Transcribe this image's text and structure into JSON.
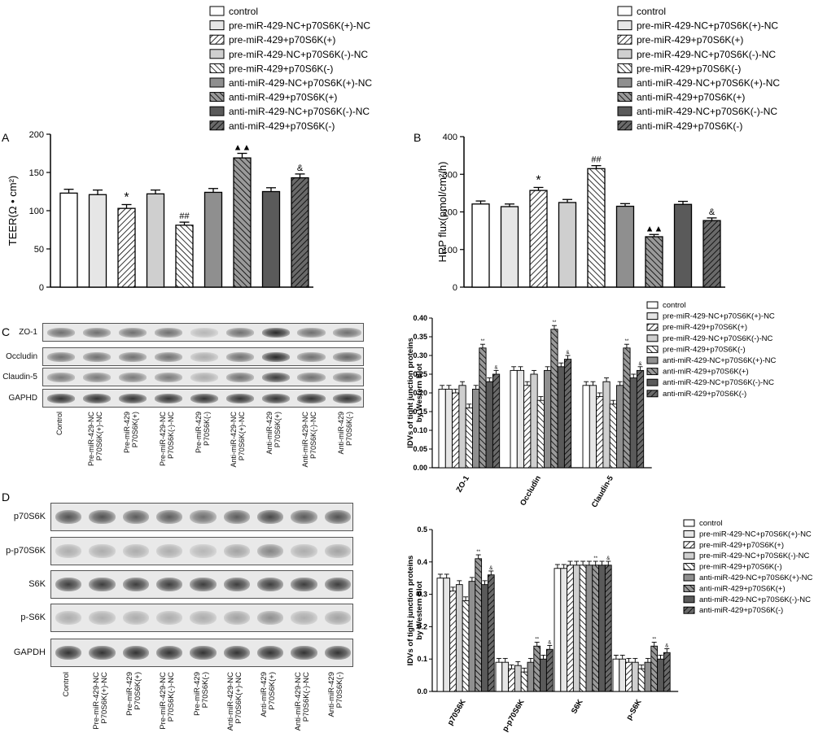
{
  "panels": {
    "A": "A",
    "B": "B",
    "C": "C",
    "D": "D"
  },
  "group_names_upper": [
    "control",
    "pre-miR-429-NC+p70S6K(+)-NC",
    "pre-miR-429+p70S6K(+)",
    "pre-miR-429-NC+p70S6K(-)-NC",
    "pre-miR-429+p70S6K(-)",
    "anti-miR-429-NC+p70S6K(+)-NC",
    "anti-miR-429+p70S6K(+)",
    "anti-miR-429-NC+p70S6K(-)-NC",
    "anti-miR-429+p70S6K(-)"
  ],
  "lane_labels": [
    "Control",
    "Pre-miR-429-NC\nP70S6K(+)-NC",
    "Pre-miR-429\nP70S6K(+)",
    "Pre-miR-429-NC\nP70S6K(-)-NC",
    "Pre-miR-429\nP70S6K(-)",
    "Anti-miR-429-NC\nP70S6K(+)-NC",
    "Anti-miR-429\nP70S6K(+)",
    "Anti-miR-429-NC\nP70S6K(-)-NC",
    "Anti-miR-429\nP70S6K(-)"
  ],
  "blots_C": {
    "labels": [
      "ZO-1",
      "Occludin",
      "Claudin-5",
      "GAPHD"
    ],
    "intensity": [
      [
        0.6,
        0.6,
        0.6,
        0.6,
        0.25,
        0.6,
        0.95,
        0.6,
        0.6
      ],
      [
        0.6,
        0.6,
        0.6,
        0.6,
        0.3,
        0.6,
        0.95,
        0.6,
        0.65
      ],
      [
        0.55,
        0.55,
        0.55,
        0.55,
        0.3,
        0.6,
        0.85,
        0.6,
        0.6
      ],
      [
        0.9,
        0.9,
        0.9,
        0.9,
        0.9,
        0.9,
        0.9,
        0.9,
        0.9
      ]
    ]
  },
  "blots_D": {
    "labels": [
      "p70S6K",
      "p-p70S6K",
      "S6K",
      "p-S6K",
      "GAPDH"
    ],
    "intensity": [
      [
        0.75,
        0.75,
        0.7,
        0.7,
        0.6,
        0.7,
        0.8,
        0.7,
        0.75
      ],
      [
        0.3,
        0.3,
        0.3,
        0.3,
        0.25,
        0.35,
        0.5,
        0.3,
        0.35
      ],
      [
        0.85,
        0.85,
        0.85,
        0.85,
        0.85,
        0.85,
        0.85,
        0.85,
        0.85
      ],
      [
        0.3,
        0.3,
        0.3,
        0.3,
        0.3,
        0.35,
        0.45,
        0.3,
        0.35
      ],
      [
        0.9,
        0.9,
        0.9,
        0.9,
        0.9,
        0.9,
        0.9,
        0.9,
        0.9
      ]
    ]
  },
  "chart_data": [
    {
      "panel": "A",
      "type": "bar",
      "ylabel": "TEER(Ω • cm²)",
      "ylim": [
        0,
        200
      ],
      "yticks": [
        "0",
        "50",
        "100",
        "150",
        "200"
      ],
      "values": [
        123,
        121,
        103,
        122,
        81,
        124,
        169,
        125,
        143
      ],
      "errors": [
        5,
        6,
        5,
        5,
        4,
        5,
        6,
        5,
        5
      ],
      "annotations": [
        "",
        "",
        "*",
        "",
        "##",
        "",
        "▲▲",
        "",
        "&"
      ]
    },
    {
      "panel": "B",
      "type": "bar",
      "ylabel": "HRP flux(pmol/cm²/h)",
      "ylim": [
        0,
        400
      ],
      "yticks": [
        "0",
        "100",
        "200",
        "300",
        "400"
      ],
      "values": [
        221,
        214,
        257,
        225,
        315,
        215,
        134,
        220,
        177
      ],
      "errors": [
        8,
        7,
        8,
        8,
        8,
        7,
        6,
        8,
        7
      ],
      "annotations": [
        "",
        "",
        "*",
        "",
        "##",
        "",
        "▲▲",
        "",
        "&"
      ]
    },
    {
      "panel": "C",
      "type": "bar",
      "ylabel_lines": [
        "IDVs of tight junction proteins",
        "by Western Blot"
      ],
      "ylim": [
        0,
        0.4
      ],
      "yticks": [
        "0.00",
        "0.05",
        "0.10",
        "0.15",
        "0.20",
        "0.25",
        "0.30",
        "0.35",
        "0.40"
      ],
      "categories": [
        "ZO-1",
        "Occludin",
        "Claudin-5"
      ],
      "series": [
        {
          "values": [
            0.21,
            0.26,
            0.22
          ]
        },
        {
          "values": [
            0.21,
            0.26,
            0.22
          ]
        },
        {
          "values": [
            0.2,
            0.22,
            0.19
          ]
        },
        {
          "values": [
            0.22,
            0.25,
            0.23
          ]
        },
        {
          "values": [
            0.16,
            0.18,
            0.17
          ]
        },
        {
          "values": [
            0.21,
            0.26,
            0.22
          ]
        },
        {
          "values": [
            0.32,
            0.37,
            0.32
          ]
        },
        {
          "values": [
            0.23,
            0.27,
            0.24
          ]
        },
        {
          "values": [
            0.25,
            0.29,
            0.26
          ]
        }
      ],
      "errors": 0.01,
      "annotations": [
        "",
        "",
        "",
        "",
        "",
        "",
        "**",
        "",
        "&"
      ]
    },
    {
      "panel": "D",
      "type": "bar",
      "ylabel_lines": [
        "IDVs of tight junction proteins",
        "by Western Blot"
      ],
      "ylim": [
        0,
        0.5
      ],
      "yticks": [
        "0.0",
        "0.1",
        "0.2",
        "0.3",
        "0.4",
        "0.5"
      ],
      "categories": [
        "p70S6K",
        "p-p70S6K",
        "S6K",
        "p-S6K"
      ],
      "series": [
        {
          "values": [
            0.35,
            0.09,
            0.38,
            0.1
          ]
        },
        {
          "values": [
            0.35,
            0.09,
            0.38,
            0.1
          ]
        },
        {
          "values": [
            0.31,
            0.07,
            0.39,
            0.09
          ]
        },
        {
          "values": [
            0.33,
            0.08,
            0.39,
            0.09
          ]
        },
        {
          "values": [
            0.28,
            0.06,
            0.39,
            0.07
          ]
        },
        {
          "values": [
            0.34,
            0.09,
            0.39,
            0.09
          ]
        },
        {
          "values": [
            0.41,
            0.14,
            0.39,
            0.14
          ]
        },
        {
          "values": [
            0.33,
            0.1,
            0.39,
            0.1
          ]
        },
        {
          "values": [
            0.36,
            0.13,
            0.39,
            0.12
          ]
        }
      ],
      "errors": 0.012,
      "annotations": [
        "",
        "",
        "",
        "",
        "",
        "",
        "**",
        "",
        "&"
      ]
    }
  ],
  "colors": {
    "axis": "#000000",
    "bar_fills": [
      "#ffffff",
      "#e6e6e6",
      "hatch",
      "#cfcfcf",
      "hatch",
      "#8f8f8f",
      "hatch-grey",
      "#5a5a5a",
      "hatch-dark"
    ]
  }
}
